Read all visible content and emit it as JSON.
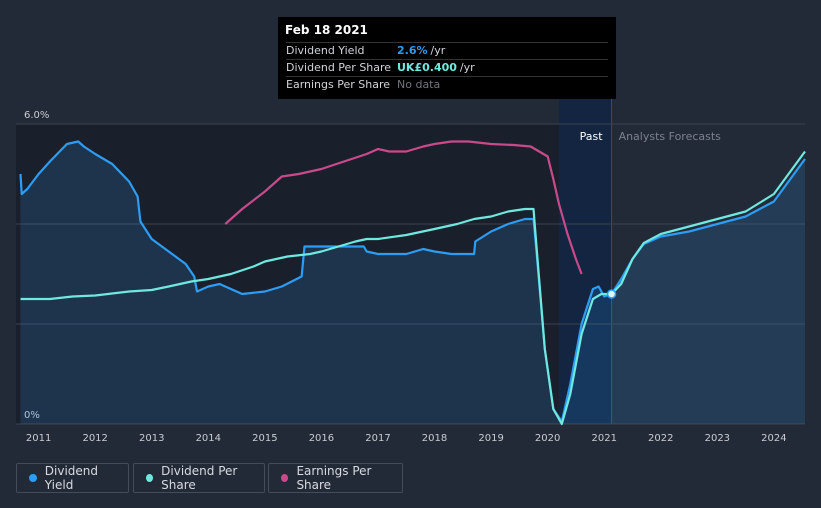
{
  "tooltip": {
    "date": "Feb 18 2021",
    "rows": [
      {
        "label": "Dividend Yield",
        "value": "2.6%",
        "unit": "/yr"
      },
      {
        "label": "Dividend Per Share",
        "value": "UK£0.400",
        "unit": "/yr"
      },
      {
        "label": "Earnings Per Share",
        "value": "No data",
        "unit": ""
      }
    ]
  },
  "legend": [
    {
      "label": "Dividend Yield",
      "color": "#2d9cf5"
    },
    {
      "label": "Dividend Per Share",
      "color": "#6fe8e0"
    },
    {
      "label": "Earnings Per Share",
      "color": "#c94a8b"
    }
  ],
  "labels": {
    "past": "Past",
    "forecast": "Analysts Forecasts"
  },
  "chart_data": {
    "type": "line",
    "y_unit": "%",
    "ylim": [
      0,
      6.0
    ],
    "y_ticks": [
      {
        "value": 6.0,
        "label": "6.0%"
      },
      {
        "value": 0,
        "label": "0%"
      }
    ],
    "xlim": [
      2010.6,
      2024.55
    ],
    "x_ticks": [
      2011,
      2012,
      2013,
      2014,
      2015,
      2016,
      2017,
      2018,
      2019,
      2020,
      2021,
      2022,
      2023,
      2024
    ],
    "past_end": 2021.13,
    "highlight_start": 2020.2,
    "grid": true,
    "series": [
      {
        "name": "Dividend Yield",
        "color": "#2d9cf5",
        "filled": true,
        "x": [
          2010.68,
          2010.7,
          2010.8,
          2011.0,
          2011.2,
          2011.5,
          2011.7,
          2011.8,
          2012.0,
          2012.3,
          2012.6,
          2012.75,
          2012.8,
          2013.0,
          2013.3,
          2013.6,
          2013.75,
          2013.8,
          2014.0,
          2014.2,
          2014.4,
          2014.6,
          2015.0,
          2015.3,
          2015.65,
          2015.7,
          2016.0,
          2016.5,
          2016.75,
          2016.8,
          2017.0,
          2017.5,
          2017.8,
          2018.0,
          2018.3,
          2018.7,
          2018.72,
          2019.0,
          2019.3,
          2019.6,
          2019.75,
          2019.8,
          2019.95,
          2020.1,
          2020.25,
          2020.4,
          2020.6,
          2020.8,
          2020.9,
          2021.0,
          2021.13,
          2021.3,
          2021.5,
          2021.7,
          2022.0,
          2022.5,
          2023.0,
          2023.5,
          2024.0,
          2024.55
        ],
        "values": [
          5.0,
          4.6,
          4.7,
          5.0,
          5.25,
          5.6,
          5.65,
          5.55,
          5.4,
          5.2,
          4.85,
          4.55,
          4.05,
          3.7,
          3.45,
          3.2,
          2.95,
          2.65,
          2.75,
          2.8,
          2.7,
          2.6,
          2.65,
          2.75,
          2.95,
          3.55,
          3.55,
          3.55,
          3.55,
          3.45,
          3.4,
          3.4,
          3.5,
          3.45,
          3.4,
          3.4,
          3.65,
          3.85,
          4.0,
          4.1,
          4.1,
          3.5,
          1.5,
          0.3,
          0.05,
          0.8,
          2.0,
          2.7,
          2.75,
          2.55,
          2.6,
          2.9,
          3.3,
          3.6,
          3.75,
          3.85,
          4.0,
          4.15,
          4.45,
          5.3
        ]
      },
      {
        "name": "Dividend Per Share",
        "color": "#6fe8e0",
        "filled": false,
        "x": [
          2010.68,
          2011.2,
          2011.6,
          2012.0,
          2012.6,
          2013.0,
          2013.3,
          2013.7,
          2014.0,
          2014.4,
          2014.8,
          2015.0,
          2015.4,
          2015.8,
          2016.0,
          2016.3,
          2016.6,
          2016.8,
          2017.0,
          2017.5,
          2018.0,
          2018.4,
          2018.7,
          2019.0,
          2019.3,
          2019.6,
          2019.75,
          2019.8,
          2019.95,
          2020.1,
          2020.25,
          2020.4,
          2020.6,
          2020.8,
          2020.95,
          2021.13,
          2021.3,
          2021.5,
          2021.7,
          2022.0,
          2022.5,
          2023.0,
          2023.5,
          2024.0,
          2024.55
        ],
        "values": [
          2.5,
          2.5,
          2.55,
          2.57,
          2.65,
          2.68,
          2.75,
          2.85,
          2.9,
          3.0,
          3.15,
          3.25,
          3.35,
          3.4,
          3.45,
          3.55,
          3.65,
          3.7,
          3.7,
          3.78,
          3.9,
          4.0,
          4.1,
          4.15,
          4.25,
          4.3,
          4.3,
          3.6,
          1.5,
          0.3,
          0.0,
          0.6,
          1.8,
          2.5,
          2.6,
          2.6,
          2.8,
          3.3,
          3.62,
          3.8,
          3.95,
          4.1,
          4.25,
          4.6,
          5.45
        ]
      },
      {
        "name": "Earnings Per Share",
        "color": "#c94a8b",
        "filled": false,
        "x": [
          2014.3,
          2014.6,
          2015.0,
          2015.3,
          2015.6,
          2016.0,
          2016.4,
          2016.8,
          2017.0,
          2017.2,
          2017.5,
          2017.8,
          2018.0,
          2018.3,
          2018.6,
          2019.0,
          2019.4,
          2019.7,
          2019.85,
          2020.0,
          2020.1,
          2020.2,
          2020.35,
          2020.5,
          2020.6
        ],
        "values": [
          4.0,
          4.3,
          4.65,
          4.95,
          5.0,
          5.1,
          5.25,
          5.4,
          5.5,
          5.45,
          5.45,
          5.55,
          5.6,
          5.65,
          5.65,
          5.6,
          5.58,
          5.55,
          5.45,
          5.35,
          4.9,
          4.4,
          3.8,
          3.3,
          3.0
        ]
      }
    ]
  }
}
